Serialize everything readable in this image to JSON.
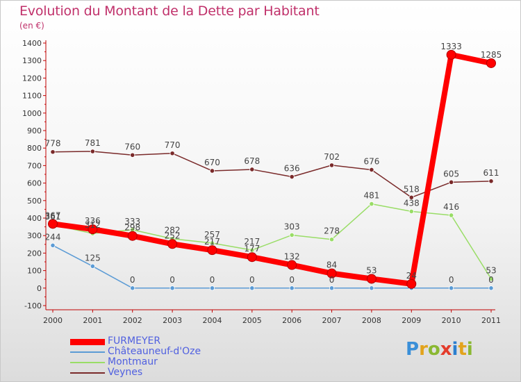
{
  "title": "Evolution du Montant de la Dette par Habitant",
  "subtitle": "(en €)",
  "chart_data": {
    "type": "line",
    "categories": [
      "2000",
      "2001",
      "2002",
      "2003",
      "2004",
      "2005",
      "2006",
      "2007",
      "2008",
      "2009",
      "2010",
      "2011"
    ],
    "ylim": [
      -100,
      1400
    ],
    "yticks": [
      -100,
      0,
      100,
      200,
      300,
      400,
      500,
      600,
      700,
      800,
      900,
      1000,
      1100,
      1200,
      1300,
      1400
    ],
    "grid": false,
    "legend_position": "bottom-left",
    "series": [
      {
        "name": "FURMEYER",
        "color": "#ff0000",
        "width": 8,
        "values": [
          367,
          336,
          298,
          252,
          217,
          177,
          132,
          84,
          53,
          24,
          1333,
          1285
        ],
        "labels": [
          "367",
          "336",
          "298",
          "252",
          "217",
          "177",
          "132",
          "84",
          "53",
          "24",
          "1333",
          "1285"
        ]
      },
      {
        "name": "Châteauneuf-d'Oze",
        "color": "#5b9bd5",
        "width": 1.5,
        "values": [
          244,
          125,
          0,
          0,
          0,
          0,
          0,
          0,
          0,
          0,
          0,
          0
        ],
        "labels": [
          "244",
          "125",
          "0",
          "0",
          "0",
          "0",
          "0",
          "0",
          "",
          "",
          "0",
          "0"
        ]
      },
      {
        "name": "Montmaur",
        "color": "#99dd66",
        "width": 1.5,
        "values": [
          361,
          312,
          333,
          282,
          257,
          217,
          303,
          278,
          481,
          438,
          416,
          53
        ],
        "labels": [
          "361",
          "312",
          "333",
          "282",
          "257",
          "217",
          "303",
          "278",
          "481",
          "438",
          "416",
          "53"
        ]
      },
      {
        "name": "Veynes",
        "color": "#7a2a2a",
        "width": 1.5,
        "values": [
          778,
          781,
          760,
          770,
          670,
          678,
          636,
          702,
          676,
          518,
          605,
          611
        ],
        "labels": [
          "778",
          "781",
          "760",
          "770",
          "670",
          "678",
          "636",
          "702",
          "676",
          "518",
          "605",
          "611"
        ]
      }
    ]
  },
  "logo": {
    "p": "P",
    "r": "r",
    "o": "o",
    "x": "x",
    "i1": "i",
    "t": "t",
    "i2": "i"
  }
}
